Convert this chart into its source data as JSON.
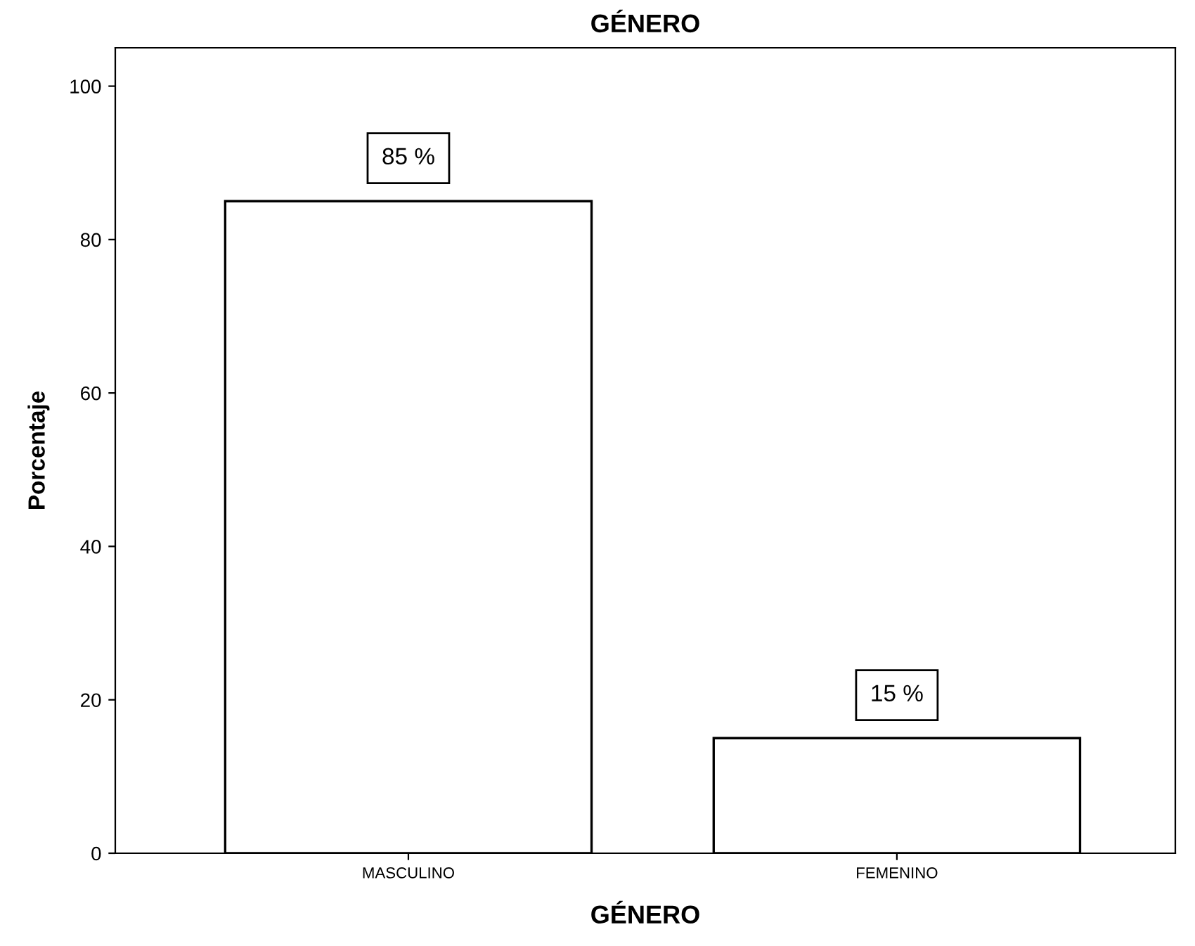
{
  "chart_data": {
    "type": "bar",
    "title": "GÉNERO",
    "xlabel": "GÉNERO",
    "ylabel": "Porcentaje",
    "categories": [
      "MASCULINO",
      "FEMENINO"
    ],
    "values": [
      85,
      15
    ],
    "value_labels": [
      "85 %",
      "15 %"
    ],
    "color": "#ffffff",
    "ylim": [
      0,
      105
    ],
    "yticks": [
      0,
      20,
      40,
      60,
      80,
      100
    ],
    "grid": false,
    "legend": false
  }
}
